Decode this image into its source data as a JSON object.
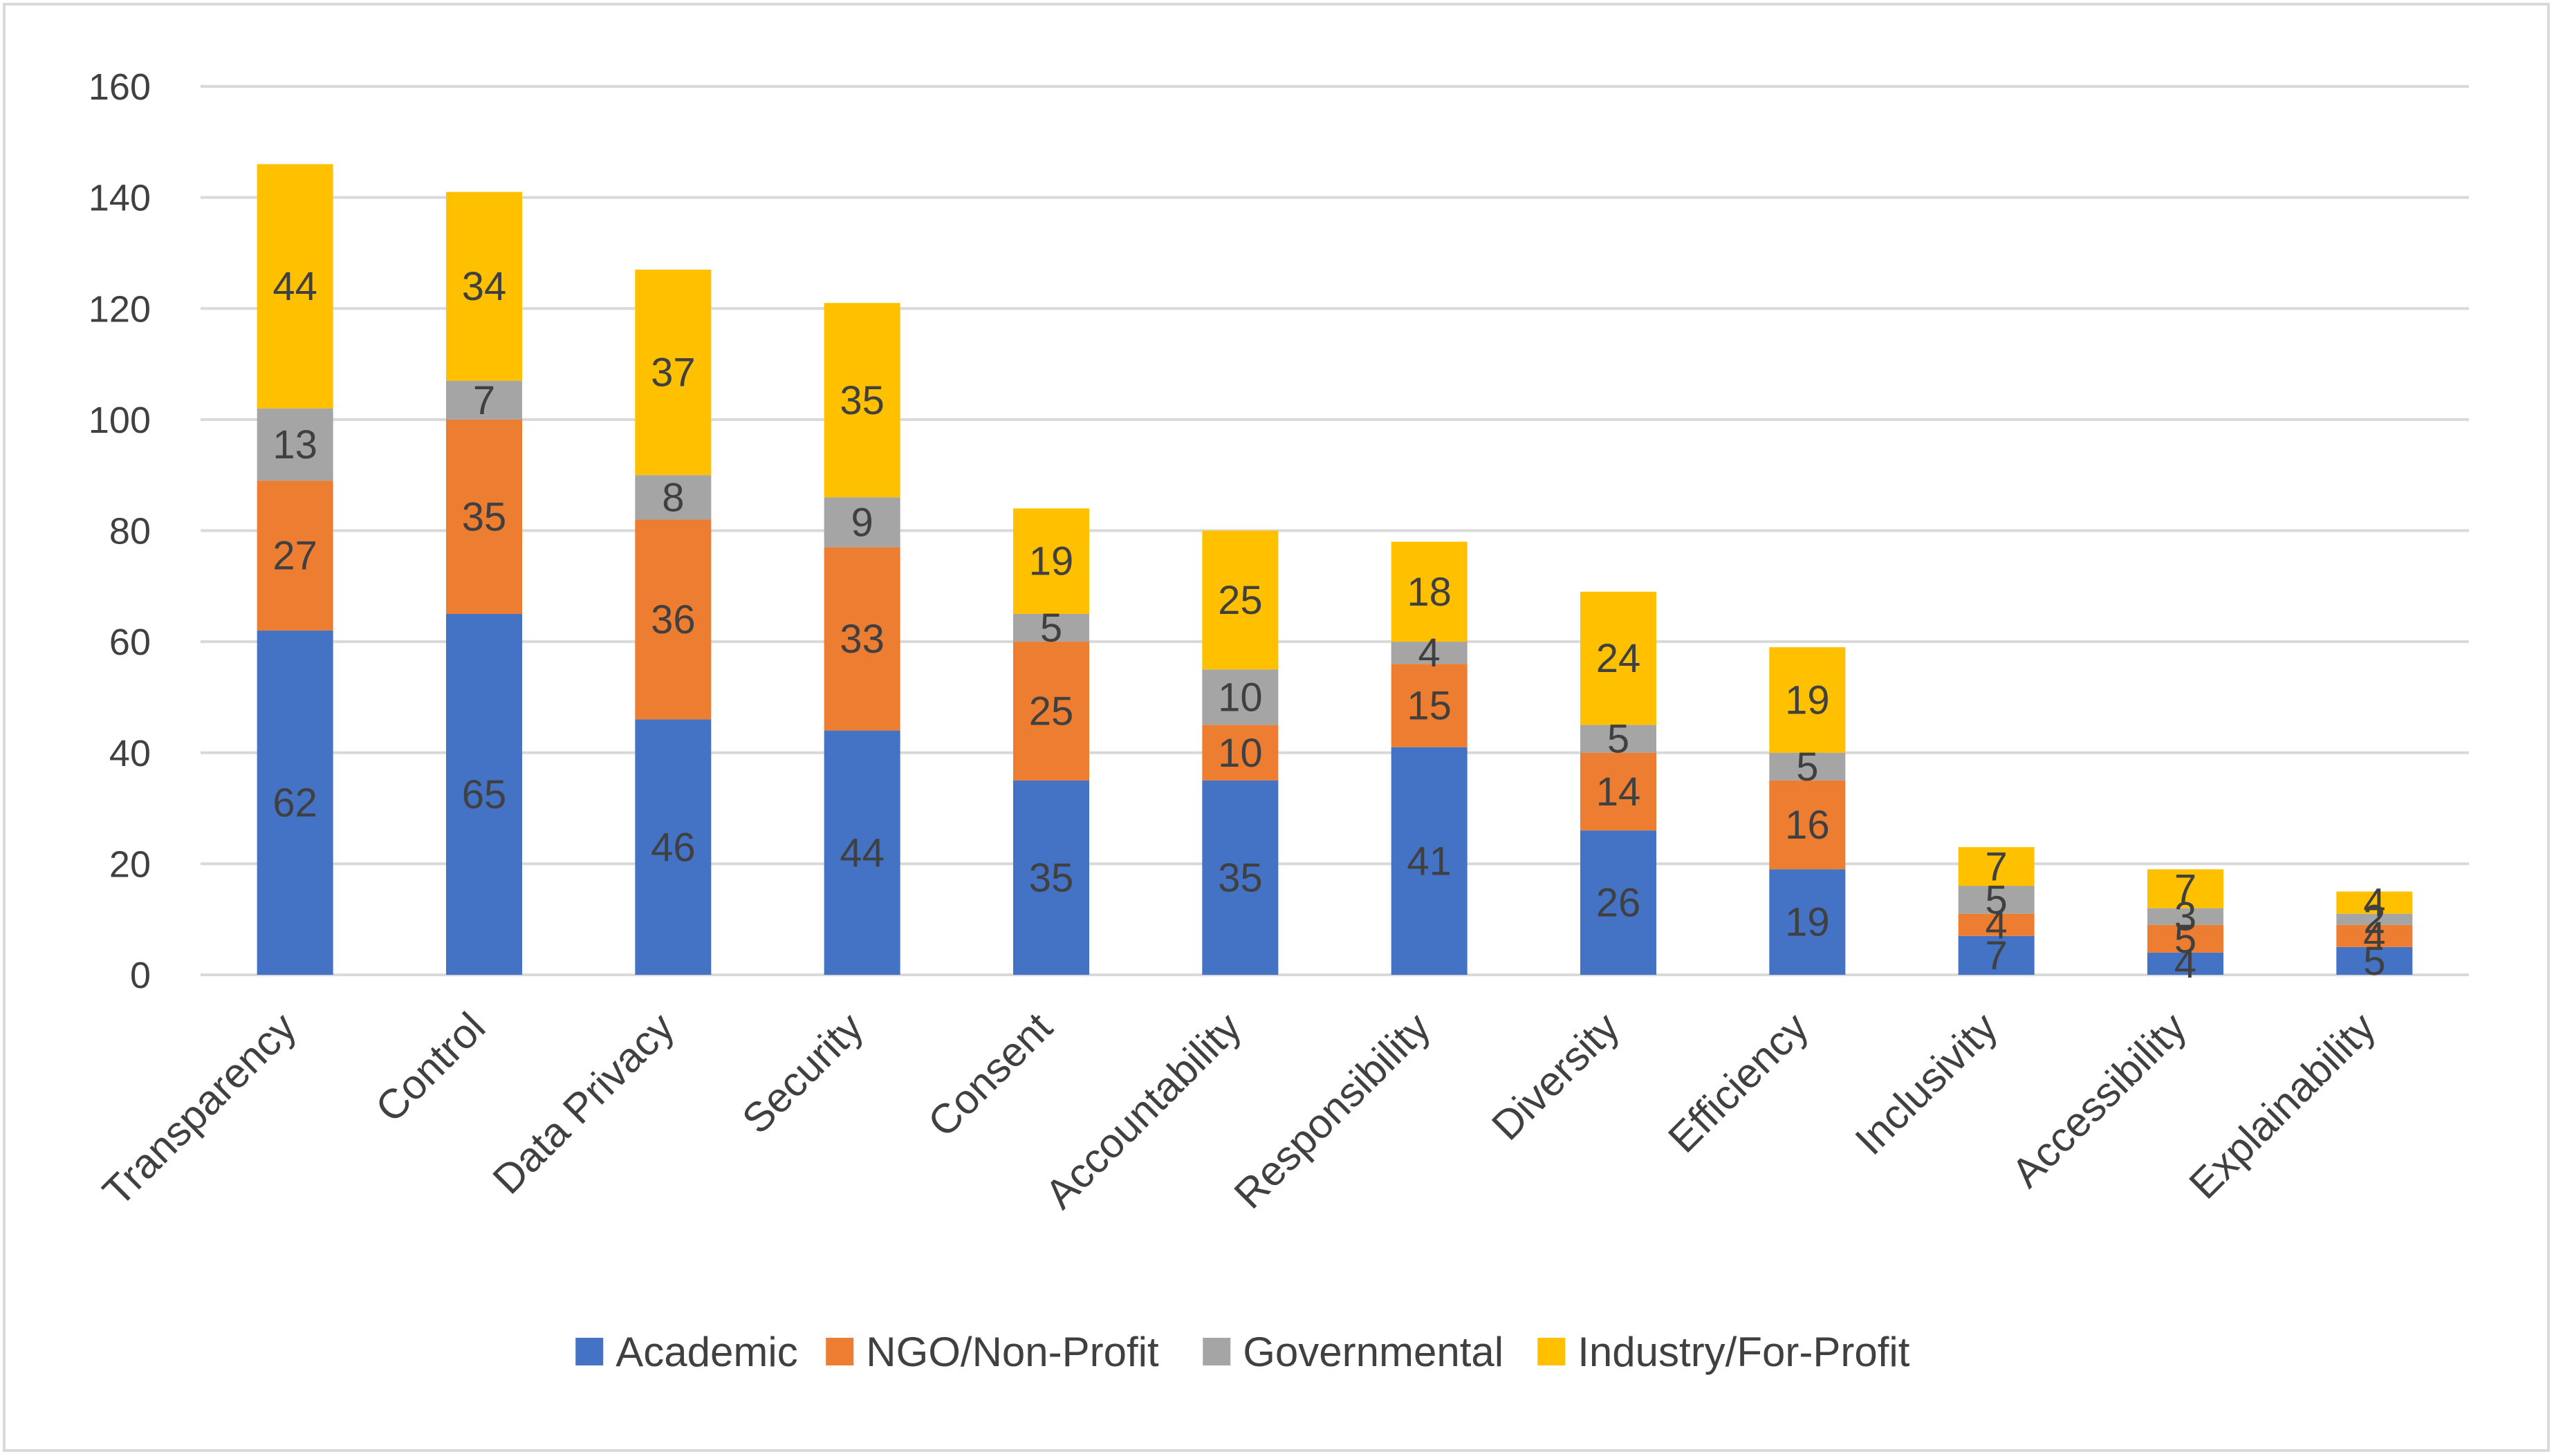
{
  "chart_data": {
    "type": "bar",
    "stacked": true,
    "categories": [
      "Transparency",
      "Control",
      "Data Privacy",
      "Security",
      "Consent",
      "Accountability",
      "Responsibility",
      "Diversity",
      "Efficiency",
      "Inclusivity",
      "Accessibility",
      "Explainability"
    ],
    "series": [
      {
        "name": "Academic",
        "color": "#4472C4",
        "values": [
          62,
          65,
          46,
          44,
          35,
          35,
          41,
          26,
          19,
          7,
          4,
          5
        ]
      },
      {
        "name": "NGO/Non-Profit",
        "color": "#ED7D31",
        "values": [
          27,
          35,
          36,
          33,
          25,
          10,
          15,
          14,
          16,
          4,
          5,
          4
        ]
      },
      {
        "name": "Governmental",
        "color": "#A5A5A5",
        "values": [
          13,
          7,
          8,
          9,
          5,
          10,
          4,
          5,
          5,
          5,
          3,
          2
        ]
      },
      {
        "name": "Industry/For-Profit",
        "color": "#FFC000",
        "values": [
          44,
          34,
          37,
          35,
          19,
          25,
          18,
          24,
          19,
          7,
          7,
          4
        ]
      }
    ],
    "y_ticks": [
      "0",
      "20",
      "40",
      "60",
      "80",
      "100",
      "120",
      "140",
      "160"
    ],
    "ylim": [
      0,
      160
    ],
    "grid": true,
    "legend_position": "bottom",
    "data_labels": true,
    "title": "",
    "xlabel": "",
    "ylabel": ""
  }
}
